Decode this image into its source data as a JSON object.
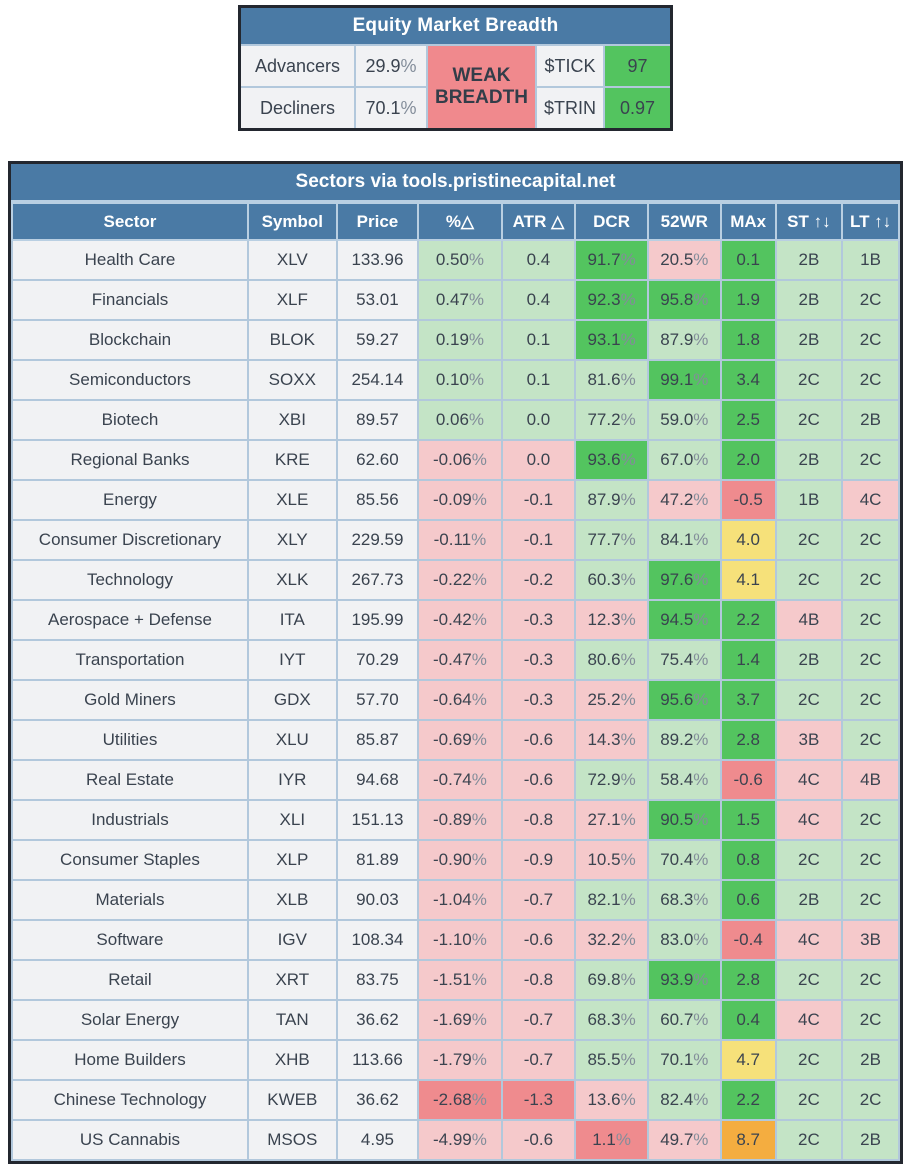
{
  "breadth": {
    "title": "Equity Market Breadth",
    "advancers_label": "Advancers",
    "advancers_value": "29.9%",
    "decliners_label": "Decliners",
    "decliners_value": "70.1%",
    "status": "WEAK BREADTH",
    "tick_label": "$TICK",
    "tick_value": "97",
    "trin_label": "$TRIN",
    "trin_value": "0.97"
  },
  "colors": {
    "g1": "#c4e4c6",
    "g2": "#53c45f",
    "r1": "#f5c9cb",
    "r2": "#ef8b8e",
    "y": "#f6e17a",
    "o": "#f4ad40",
    "gray": "#f1f2f4",
    "header_blue": "#4a7aa5",
    "status_red": "#f0898d",
    "status_green": "#53c45f"
  },
  "sectors": {
    "title": "Sectors via tools.pristinecapital.net",
    "columns": [
      "Sector",
      "Symbol",
      "Price",
      "%△",
      "ATR △",
      "DCR",
      "52WR",
      "MAx",
      "ST ↑↓",
      "LT ↑↓"
    ],
    "column_keys": [
      "sector",
      "symbol",
      "price",
      "pct-change",
      "atr-change",
      "dcr",
      "52wr",
      "max",
      "st-rating",
      "lt-rating"
    ],
    "rows": [
      {
        "sector": "Health Care",
        "symbol": "XLV",
        "price": "133.96",
        "cells": [
          {
            "v": "0.50%",
            "c": "g1"
          },
          {
            "v": "0.4",
            "c": "g1"
          },
          {
            "v": "91.7%",
            "c": "g2"
          },
          {
            "v": "20.5%",
            "c": "r1"
          },
          {
            "v": "0.1",
            "c": "g2"
          },
          {
            "v": "2B",
            "c": "g1"
          },
          {
            "v": "1B",
            "c": "g1"
          }
        ]
      },
      {
        "sector": "Financials",
        "symbol": "XLF",
        "price": "53.01",
        "cells": [
          {
            "v": "0.47%",
            "c": "g1"
          },
          {
            "v": "0.4",
            "c": "g1"
          },
          {
            "v": "92.3%",
            "c": "g2"
          },
          {
            "v": "95.8%",
            "c": "g2"
          },
          {
            "v": "1.9",
            "c": "g2"
          },
          {
            "v": "2B",
            "c": "g1"
          },
          {
            "v": "2C",
            "c": "g1"
          }
        ]
      },
      {
        "sector": "Blockchain",
        "symbol": "BLOK",
        "price": "59.27",
        "cells": [
          {
            "v": "0.19%",
            "c": "g1"
          },
          {
            "v": "0.1",
            "c": "g1"
          },
          {
            "v": "93.1%",
            "c": "g2"
          },
          {
            "v": "87.9%",
            "c": "g1"
          },
          {
            "v": "1.8",
            "c": "g2"
          },
          {
            "v": "2B",
            "c": "g1"
          },
          {
            "v": "2C",
            "c": "g1"
          }
        ]
      },
      {
        "sector": "Semiconductors",
        "symbol": "SOXX",
        "price": "254.14",
        "cells": [
          {
            "v": "0.10%",
            "c": "g1"
          },
          {
            "v": "0.1",
            "c": "g1"
          },
          {
            "v": "81.6%",
            "c": "g1"
          },
          {
            "v": "99.1%",
            "c": "g2"
          },
          {
            "v": "3.4",
            "c": "g2"
          },
          {
            "v": "2C",
            "c": "g1"
          },
          {
            "v": "2C",
            "c": "g1"
          }
        ]
      },
      {
        "sector": "Biotech",
        "symbol": "XBI",
        "price": "89.57",
        "cells": [
          {
            "v": "0.06%",
            "c": "g1"
          },
          {
            "v": "0.0",
            "c": "g1"
          },
          {
            "v": "77.2%",
            "c": "g1"
          },
          {
            "v": "59.0%",
            "c": "g1"
          },
          {
            "v": "2.5",
            "c": "g2"
          },
          {
            "v": "2C",
            "c": "g1"
          },
          {
            "v": "2B",
            "c": "g1"
          }
        ]
      },
      {
        "sector": "Regional Banks",
        "symbol": "KRE",
        "price": "62.60",
        "cells": [
          {
            "v": "-0.06%",
            "c": "r1"
          },
          {
            "v": "0.0",
            "c": "r1"
          },
          {
            "v": "93.6%",
            "c": "g2"
          },
          {
            "v": "67.0%",
            "c": "g1"
          },
          {
            "v": "2.0",
            "c": "g2"
          },
          {
            "v": "2B",
            "c": "g1"
          },
          {
            "v": "2C",
            "c": "g1"
          }
        ]
      },
      {
        "sector": "Energy",
        "symbol": "XLE",
        "price": "85.56",
        "cells": [
          {
            "v": "-0.09%",
            "c": "r1"
          },
          {
            "v": "-0.1",
            "c": "r1"
          },
          {
            "v": "87.9%",
            "c": "g1"
          },
          {
            "v": "47.2%",
            "c": "r1"
          },
          {
            "v": "-0.5",
            "c": "r2"
          },
          {
            "v": "1B",
            "c": "g1"
          },
          {
            "v": "4C",
            "c": "r1"
          }
        ]
      },
      {
        "sector": "Consumer Discretionary",
        "symbol": "XLY",
        "price": "229.59",
        "cells": [
          {
            "v": "-0.11%",
            "c": "r1"
          },
          {
            "v": "-0.1",
            "c": "r1"
          },
          {
            "v": "77.7%",
            "c": "g1"
          },
          {
            "v": "84.1%",
            "c": "g1"
          },
          {
            "v": "4.0",
            "c": "y"
          },
          {
            "v": "2C",
            "c": "g1"
          },
          {
            "v": "2C",
            "c": "g1"
          }
        ]
      },
      {
        "sector": "Technology",
        "symbol": "XLK",
        "price": "267.73",
        "cells": [
          {
            "v": "-0.22%",
            "c": "r1"
          },
          {
            "v": "-0.2",
            "c": "r1"
          },
          {
            "v": "60.3%",
            "c": "g1"
          },
          {
            "v": "97.6%",
            "c": "g2"
          },
          {
            "v": "4.1",
            "c": "y"
          },
          {
            "v": "2C",
            "c": "g1"
          },
          {
            "v": "2C",
            "c": "g1"
          }
        ]
      },
      {
        "sector": "Aerospace + Defense",
        "symbol": "ITA",
        "price": "195.99",
        "cells": [
          {
            "v": "-0.42%",
            "c": "r1"
          },
          {
            "v": "-0.3",
            "c": "r1"
          },
          {
            "v": "12.3%",
            "c": "r1"
          },
          {
            "v": "94.5%",
            "c": "g2"
          },
          {
            "v": "2.2",
            "c": "g2"
          },
          {
            "v": "4B",
            "c": "r1"
          },
          {
            "v": "2C",
            "c": "g1"
          }
        ]
      },
      {
        "sector": "Transportation",
        "symbol": "IYT",
        "price": "70.29",
        "cells": [
          {
            "v": "-0.47%",
            "c": "r1"
          },
          {
            "v": "-0.3",
            "c": "r1"
          },
          {
            "v": "80.6%",
            "c": "g1"
          },
          {
            "v": "75.4%",
            "c": "g1"
          },
          {
            "v": "1.4",
            "c": "g2"
          },
          {
            "v": "2B",
            "c": "g1"
          },
          {
            "v": "2C",
            "c": "g1"
          }
        ]
      },
      {
        "sector": "Gold Miners",
        "symbol": "GDX",
        "price": "57.70",
        "cells": [
          {
            "v": "-0.64%",
            "c": "r1"
          },
          {
            "v": "-0.3",
            "c": "r1"
          },
          {
            "v": "25.2%",
            "c": "r1"
          },
          {
            "v": "95.6%",
            "c": "g2"
          },
          {
            "v": "3.7",
            "c": "g2"
          },
          {
            "v": "2C",
            "c": "g1"
          },
          {
            "v": "2C",
            "c": "g1"
          }
        ]
      },
      {
        "sector": "Utilities",
        "symbol": "XLU",
        "price": "85.87",
        "cells": [
          {
            "v": "-0.69%",
            "c": "r1"
          },
          {
            "v": "-0.6",
            "c": "r1"
          },
          {
            "v": "14.3%",
            "c": "r1"
          },
          {
            "v": "89.2%",
            "c": "g1"
          },
          {
            "v": "2.8",
            "c": "g2"
          },
          {
            "v": "3B",
            "c": "r1"
          },
          {
            "v": "2C",
            "c": "g1"
          }
        ]
      },
      {
        "sector": "Real Estate",
        "symbol": "IYR",
        "price": "94.68",
        "cells": [
          {
            "v": "-0.74%",
            "c": "r1"
          },
          {
            "v": "-0.6",
            "c": "r1"
          },
          {
            "v": "72.9%",
            "c": "g1"
          },
          {
            "v": "58.4%",
            "c": "g1"
          },
          {
            "v": "-0.6",
            "c": "r2"
          },
          {
            "v": "4C",
            "c": "r1"
          },
          {
            "v": "4B",
            "c": "r1"
          }
        ]
      },
      {
        "sector": "Industrials",
        "symbol": "XLI",
        "price": "151.13",
        "cells": [
          {
            "v": "-0.89%",
            "c": "r1"
          },
          {
            "v": "-0.8",
            "c": "r1"
          },
          {
            "v": "27.1%",
            "c": "r1"
          },
          {
            "v": "90.5%",
            "c": "g2"
          },
          {
            "v": "1.5",
            "c": "g2"
          },
          {
            "v": "4C",
            "c": "r1"
          },
          {
            "v": "2C",
            "c": "g1"
          }
        ]
      },
      {
        "sector": "Consumer Staples",
        "symbol": "XLP",
        "price": "81.89",
        "cells": [
          {
            "v": "-0.90%",
            "c": "r1"
          },
          {
            "v": "-0.9",
            "c": "r1"
          },
          {
            "v": "10.5%",
            "c": "r1"
          },
          {
            "v": "70.4%",
            "c": "g1"
          },
          {
            "v": "0.8",
            "c": "g2"
          },
          {
            "v": "2C",
            "c": "g1"
          },
          {
            "v": "2C",
            "c": "g1"
          }
        ]
      },
      {
        "sector": "Materials",
        "symbol": "XLB",
        "price": "90.03",
        "cells": [
          {
            "v": "-1.04%",
            "c": "r1"
          },
          {
            "v": "-0.7",
            "c": "r1"
          },
          {
            "v": "82.1%",
            "c": "g1"
          },
          {
            "v": "68.3%",
            "c": "g1"
          },
          {
            "v": "0.6",
            "c": "g2"
          },
          {
            "v": "2B",
            "c": "g1"
          },
          {
            "v": "2C",
            "c": "g1"
          }
        ]
      },
      {
        "sector": "Software",
        "symbol": "IGV",
        "price": "108.34",
        "cells": [
          {
            "v": "-1.10%",
            "c": "r1"
          },
          {
            "v": "-0.6",
            "c": "r1"
          },
          {
            "v": "32.2%",
            "c": "r1"
          },
          {
            "v": "83.0%",
            "c": "g1"
          },
          {
            "v": "-0.4",
            "c": "r2"
          },
          {
            "v": "4C",
            "c": "r1"
          },
          {
            "v": "3B",
            "c": "r1"
          }
        ]
      },
      {
        "sector": "Retail",
        "symbol": "XRT",
        "price": "83.75",
        "cells": [
          {
            "v": "-1.51%",
            "c": "r1"
          },
          {
            "v": "-0.8",
            "c": "r1"
          },
          {
            "v": "69.8%",
            "c": "g1"
          },
          {
            "v": "93.9%",
            "c": "g2"
          },
          {
            "v": "2.8",
            "c": "g2"
          },
          {
            "v": "2C",
            "c": "g1"
          },
          {
            "v": "2C",
            "c": "g1"
          }
        ]
      },
      {
        "sector": "Solar Energy",
        "symbol": "TAN",
        "price": "36.62",
        "cells": [
          {
            "v": "-1.69%",
            "c": "r1"
          },
          {
            "v": "-0.7",
            "c": "r1"
          },
          {
            "v": "68.3%",
            "c": "g1"
          },
          {
            "v": "60.7%",
            "c": "g1"
          },
          {
            "v": "0.4",
            "c": "g2"
          },
          {
            "v": "4C",
            "c": "r1"
          },
          {
            "v": "2C",
            "c": "g1"
          }
        ]
      },
      {
        "sector": "Home Builders",
        "symbol": "XHB",
        "price": "113.66",
        "cells": [
          {
            "v": "-1.79%",
            "c": "r1"
          },
          {
            "v": "-0.7",
            "c": "r1"
          },
          {
            "v": "85.5%",
            "c": "g1"
          },
          {
            "v": "70.1%",
            "c": "g1"
          },
          {
            "v": "4.7",
            "c": "y"
          },
          {
            "v": "2C",
            "c": "g1"
          },
          {
            "v": "2B",
            "c": "g1"
          }
        ]
      },
      {
        "sector": "Chinese Technology",
        "symbol": "KWEB",
        "price": "36.62",
        "cells": [
          {
            "v": "-2.68%",
            "c": "r2"
          },
          {
            "v": "-1.3",
            "c": "r2"
          },
          {
            "v": "13.6%",
            "c": "r1"
          },
          {
            "v": "82.4%",
            "c": "g1"
          },
          {
            "v": "2.2",
            "c": "g2"
          },
          {
            "v": "2C",
            "c": "g1"
          },
          {
            "v": "2C",
            "c": "g1"
          }
        ]
      },
      {
        "sector": "US Cannabis",
        "symbol": "MSOS",
        "price": "4.95",
        "cells": [
          {
            "v": "-4.99%",
            "c": "r1"
          },
          {
            "v": "-0.6",
            "c": "r1"
          },
          {
            "v": "1.1%",
            "c": "r2"
          },
          {
            "v": "49.7%",
            "c": "r1"
          },
          {
            "v": "8.7",
            "c": "o"
          },
          {
            "v": "2C",
            "c": "g1"
          },
          {
            "v": "2B",
            "c": "g1"
          }
        ]
      }
    ]
  }
}
